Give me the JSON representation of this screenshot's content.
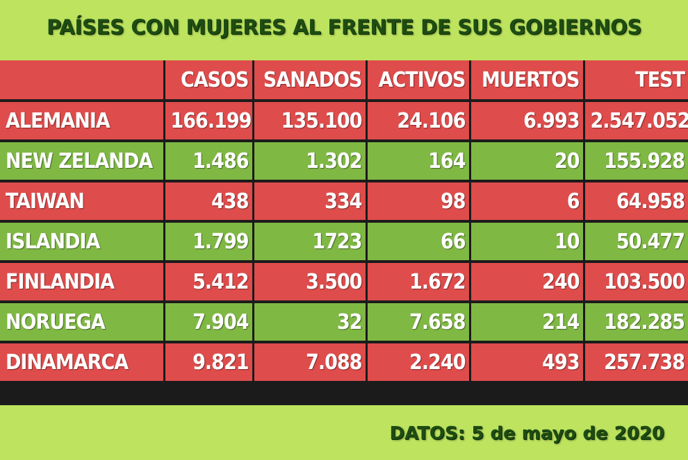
{
  "title": "PAÍSES CON MUJERES AL FRENTE DE SUS GOBIERNOS",
  "footer": "DATOS: 5 de mayo de 2020",
  "colors": {
    "background": "#bde35f",
    "red_row": "#df4c4c",
    "green_row": "#7fb843",
    "title_text": "#1e4d12",
    "grid": "#1b1b1b"
  },
  "chart_data": {
    "type": "table",
    "title": "PAÍSES CON MUJERES AL FRENTE DE SUS GOBIERNOS",
    "columns": [
      "",
      "CASOS",
      "SANADOS",
      "ACTIVOS",
      "MUERTOS",
      "TEST"
    ],
    "rows": [
      {
        "country": "ALEMANIA",
        "values": [
          "166.199",
          "135.100",
          "24.106",
          "6.993",
          "2.547.052"
        ],
        "color": "red"
      },
      {
        "country": "NEW ZELANDA",
        "values": [
          "1.486",
          "1.302",
          "164",
          "20",
          "155.928"
        ],
        "color": "green"
      },
      {
        "country": "TAIWAN",
        "values": [
          "438",
          "334",
          "98",
          "6",
          "64.958"
        ],
        "color": "red"
      },
      {
        "country": "ISLANDIA",
        "values": [
          "1.799",
          "1723",
          "66",
          "10",
          "50.477"
        ],
        "color": "green"
      },
      {
        "country": "FINLANDIA",
        "values": [
          "5.412",
          "3.500",
          "1.672",
          "240",
          "103.500"
        ],
        "color": "red"
      },
      {
        "country": "NORUEGA",
        "values": [
          "7.904",
          "32",
          "7.658",
          "214",
          "182.285"
        ],
        "color": "green"
      },
      {
        "country": "DINAMARCA",
        "values": [
          "9.821",
          "7.088",
          "2.240",
          "493",
          "257.738"
        ],
        "color": "red"
      }
    ],
    "note": "DATOS: 5 de mayo de 2020"
  }
}
